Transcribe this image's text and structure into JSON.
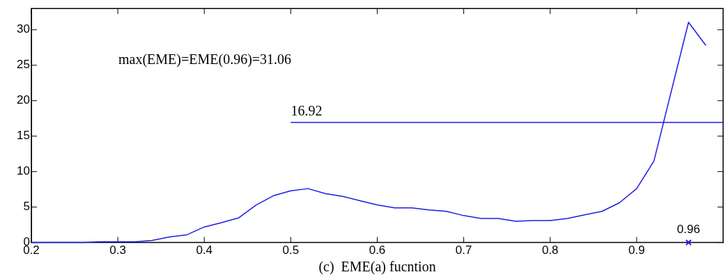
{
  "chart_data": {
    "type": "line",
    "xlabel": "(c)  EME(a) fucntion",
    "xlim": [
      0.2,
      1.0
    ],
    "xticks": [
      0.2,
      0.3,
      0.4,
      0.5,
      0.6,
      0.7,
      0.8,
      0.9
    ],
    "ylim": [
      0,
      33
    ],
    "yticks": [
      0,
      5,
      10,
      15,
      20,
      25,
      30
    ],
    "grid": false,
    "legend": false,
    "marker": "none",
    "line_style": "solid",
    "series": [
      {
        "color": "#1c1ce0",
        "x": [
          0.2,
          0.22,
          0.24,
          0.26,
          0.28,
          0.3,
          0.32,
          0.34,
          0.36,
          0.38,
          0.4,
          0.42,
          0.44,
          0.46,
          0.48,
          0.5,
          0.52,
          0.54,
          0.56,
          0.58,
          0.6,
          0.62,
          0.64,
          0.66,
          0.68,
          0.7,
          0.72,
          0.74,
          0.76,
          0.78,
          0.8,
          0.82,
          0.84,
          0.86,
          0.88,
          0.9,
          0.92,
          0.94,
          0.96,
          0.98
        ],
        "values": [
          0,
          0,
          0,
          0,
          0.1,
          0.1,
          0.1,
          0.3,
          0.8,
          1.1,
          2.2,
          2.8,
          3.5,
          5.3,
          6.6,
          7.3,
          7.6,
          6.9,
          6.5,
          5.9,
          5.3,
          4.9,
          4.9,
          4.6,
          4.4,
          3.8,
          3.4,
          3.4,
          3.0,
          3.1,
          3.1,
          3.4,
          3.9,
          4.4,
          5.6,
          7.6,
          11.5,
          21.3,
          31.06,
          27.8
        ]
      },
      {
        "color": "#1c1ce0",
        "x": [
          0.5,
          1.0
        ],
        "values": [
          16.92,
          16.92
        ]
      },
      {
        "type": "scatter",
        "marker": "cross",
        "color": "#1c1ce0",
        "x": [
          0.96
        ],
        "values": [
          0
        ]
      }
    ],
    "annotations": [
      "max(EME)=EME(0.96)=31.06",
      {
        "text": "16.92",
        "x": 0.5,
        "y": 16.92
      },
      {
        "text": "0.96",
        "x": 0.96,
        "y": 0
      }
    ]
  }
}
